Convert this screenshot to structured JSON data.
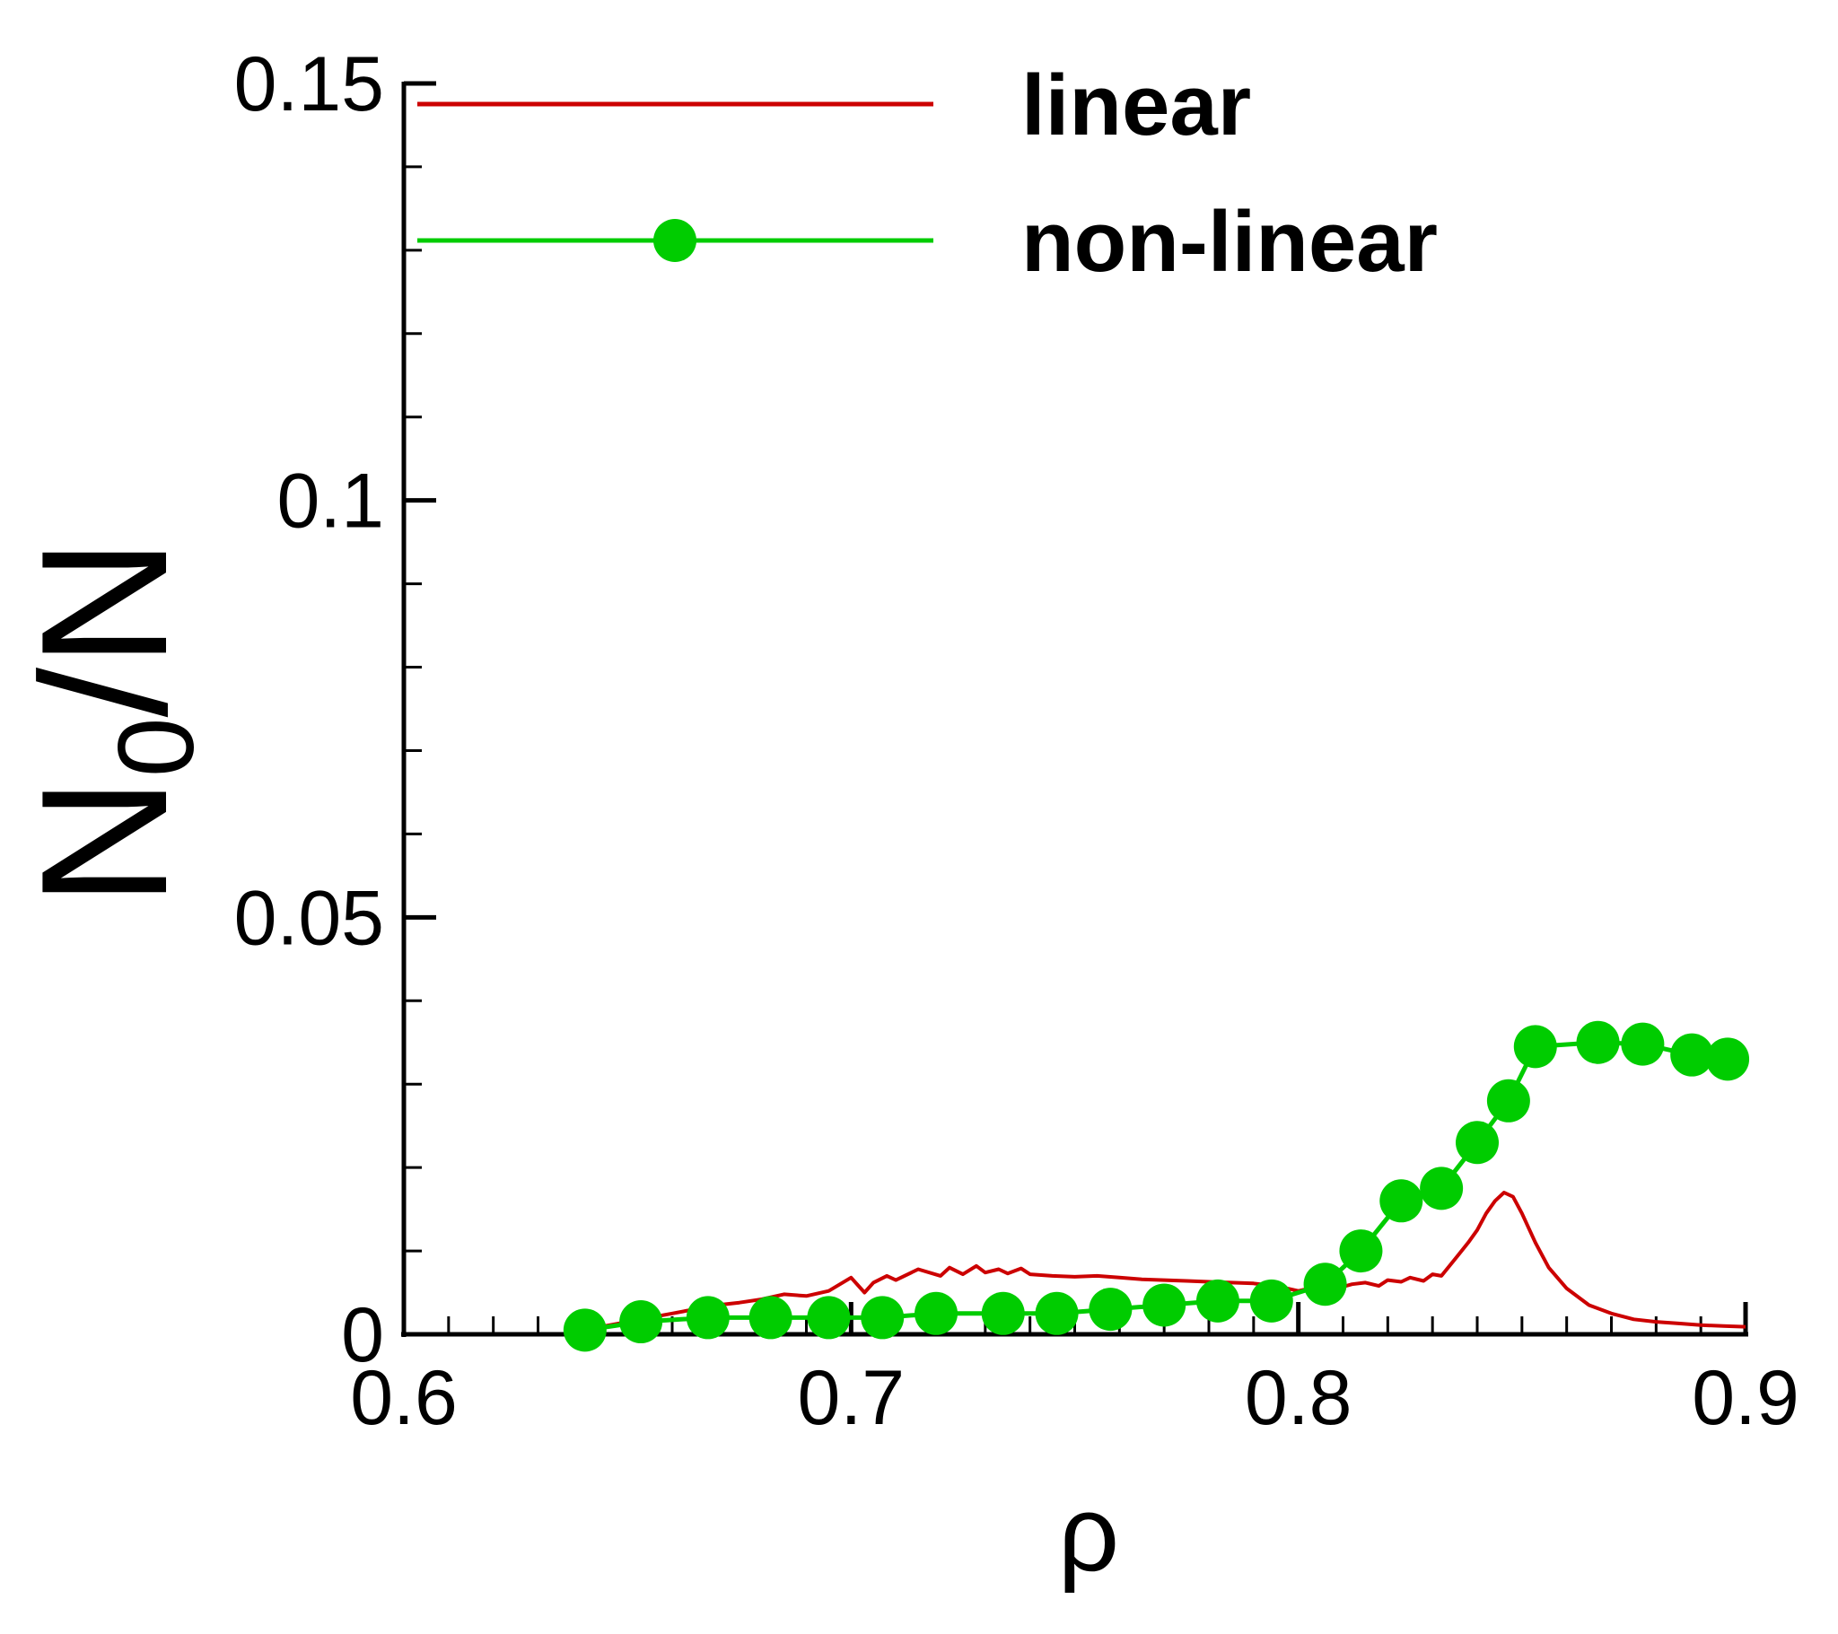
{
  "colors": {
    "linear": "#cc0000",
    "non_linear": "#00cc00",
    "axis": "#000000"
  },
  "chart_data": {
    "type": "line",
    "title": "",
    "xlabel": "ρ",
    "ylabel": {
      "main": "N",
      "subscript": "0",
      "suffix": "/N"
    },
    "xlim": [
      0.6,
      0.9
    ],
    "ylim": [
      0,
      0.15
    ],
    "x_ticks": [
      0.6,
      0.7,
      0.8,
      0.9
    ],
    "x_tick_labels": [
      "0.6",
      "0.7",
      "0.8",
      "0.9"
    ],
    "y_ticks": [
      0,
      0.05,
      0.1,
      0.15
    ],
    "y_tick_labels": [
      "0",
      "0.05",
      "0.1",
      "0.15"
    ],
    "grid": false,
    "legend_position": "top",
    "series": [
      {
        "name": "linear",
        "marker": "none",
        "x": [
          0.64,
          0.645,
          0.65,
          0.655,
          0.66,
          0.665,
          0.67,
          0.675,
          0.68,
          0.685,
          0.69,
          0.695,
          0.7,
          0.703,
          0.705,
          0.708,
          0.71,
          0.715,
          0.72,
          0.722,
          0.725,
          0.728,
          0.73,
          0.733,
          0.735,
          0.738,
          0.74,
          0.745,
          0.75,
          0.755,
          0.76,
          0.765,
          0.77,
          0.775,
          0.78,
          0.785,
          0.79,
          0.795,
          0.8,
          0.805,
          0.81,
          0.812,
          0.815,
          0.818,
          0.82,
          0.823,
          0.825,
          0.828,
          0.83,
          0.832,
          0.835,
          0.838,
          0.84,
          0.842,
          0.844,
          0.846,
          0.848,
          0.85,
          0.853,
          0.856,
          0.86,
          0.865,
          0.87,
          0.875,
          0.88,
          0.885,
          0.89,
          0.895,
          0.9
        ],
        "y": [
          0.0005,
          0.001,
          0.0015,
          0.002,
          0.0025,
          0.003,
          0.0035,
          0.0038,
          0.0042,
          0.0048,
          0.0046,
          0.0052,
          0.0068,
          0.005,
          0.0062,
          0.007,
          0.0065,
          0.0078,
          0.007,
          0.008,
          0.0072,
          0.0082,
          0.0074,
          0.0078,
          0.0073,
          0.0079,
          0.0072,
          0.007,
          0.0069,
          0.007,
          0.0068,
          0.0066,
          0.0065,
          0.0064,
          0.0063,
          0.0062,
          0.0061,
          0.0058,
          0.0052,
          0.0058,
          0.0057,
          0.006,
          0.0062,
          0.0058,
          0.0065,
          0.0063,
          0.0068,
          0.0064,
          0.0072,
          0.007,
          0.009,
          0.011,
          0.0125,
          0.0145,
          0.016,
          0.017,
          0.0165,
          0.0145,
          0.011,
          0.008,
          0.0055,
          0.0035,
          0.0025,
          0.0018,
          0.0015,
          0.0013,
          0.0011,
          0.001,
          0.0009
        ]
      },
      {
        "name": "non-linear",
        "marker": "circle",
        "x": [
          0.6405,
          0.653,
          0.668,
          0.682,
          0.695,
          0.707,
          0.719,
          0.734,
          0.746,
          0.758,
          0.77,
          0.782,
          0.794,
          0.806,
          0.814,
          0.823,
          0.832,
          0.84,
          0.847,
          0.853,
          0.867,
          0.877,
          0.888,
          0.896
        ],
        "y": [
          0.0005,
          0.0015,
          0.002,
          0.002,
          0.002,
          0.002,
          0.0025,
          0.0025,
          0.0025,
          0.003,
          0.0035,
          0.004,
          0.004,
          0.006,
          0.01,
          0.016,
          0.0175,
          0.023,
          0.028,
          0.0345,
          0.035,
          0.0348,
          0.0335,
          0.033
        ]
      }
    ]
  }
}
